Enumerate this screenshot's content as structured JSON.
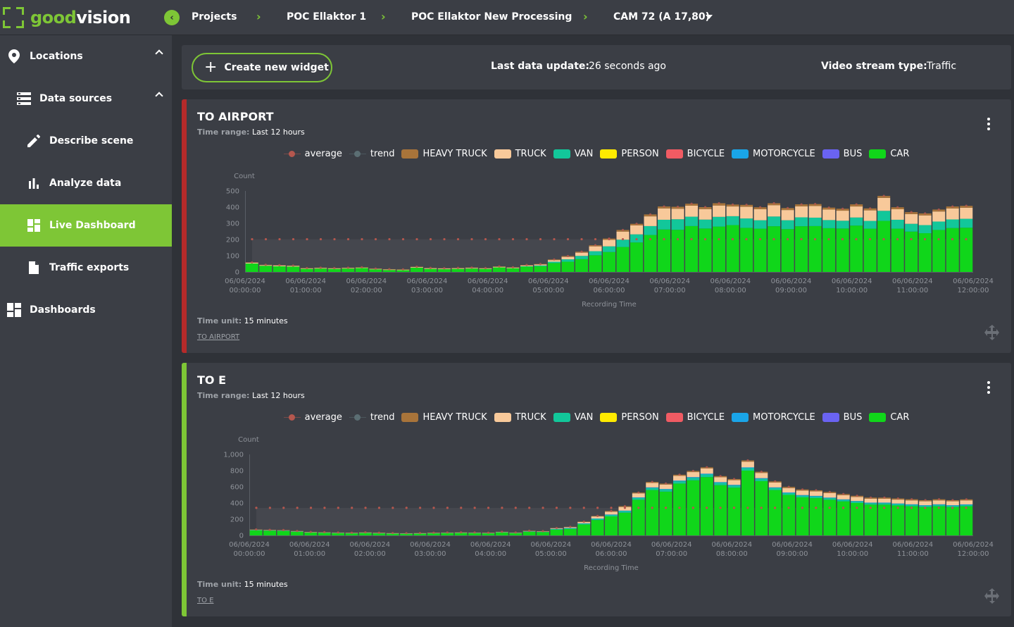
{
  "app": {
    "logo_good": "good",
    "logo_vision": "vision"
  },
  "breadcrumb": {
    "items": [
      "Projects",
      "POC Ellaktor 1",
      "POC Ellaktor New Processing",
      "CAM 72 (A 17,80)"
    ]
  },
  "sidebar": {
    "items": [
      {
        "label": "Locations",
        "icon": "location-pin-icon"
      },
      {
        "label": "Data sources",
        "icon": "data-sources-icon"
      },
      {
        "label": "Describe scene",
        "icon": "pencil-icon"
      },
      {
        "label": "Analyze data",
        "icon": "bar-chart-icon"
      },
      {
        "label": "Live Dashboard",
        "icon": "dashboard-icon",
        "active": true
      },
      {
        "label": "Traffic exports",
        "icon": "file-icon"
      },
      {
        "label": "Dashboards",
        "icon": "dashboards-icon"
      }
    ]
  },
  "header": {
    "create_label": "Create new widget",
    "last_update_label": "Last data update:",
    "last_update_value": "26 seconds ago",
    "stream_type_label": "Video stream type:",
    "stream_type_value": "Traffic"
  },
  "colors": {
    "accent": "#7ec636",
    "panel": "#3b3e45",
    "bg": "#2f3238"
  },
  "legend": [
    {
      "label": "average",
      "color": "#b5574e",
      "kind": "dot"
    },
    {
      "label": "trend",
      "color": "#5b6e73",
      "kind": "dot"
    },
    {
      "label": "HEAVY TRUCK",
      "color": "#a8743a",
      "kind": "box"
    },
    {
      "label": "TRUCK",
      "color": "#f8c99a",
      "kind": "box"
    },
    {
      "label": "VAN",
      "color": "#12c79a",
      "kind": "box"
    },
    {
      "label": "PERSON",
      "color": "#ffea00",
      "kind": "box"
    },
    {
      "label": "BICYCLE",
      "color": "#f05b63",
      "kind": "box"
    },
    {
      "label": "MOTORCYCLE",
      "color": "#1aa5e8",
      "kind": "box"
    },
    {
      "label": "BUS",
      "color": "#6a63f2",
      "kind": "box"
    },
    {
      "label": "CAR",
      "color": "#10d61a",
      "kind": "box"
    }
  ],
  "widgets": [
    {
      "title": "TO AIRPORT",
      "time_range_label": "Time range:",
      "time_range_value": "Last 12 hours",
      "time_unit_label": "Time unit:",
      "time_unit_value": "15 minutes",
      "link": "TO AIRPORT",
      "accent_color": "#b52a2a",
      "chart_data": {
        "type": "bar",
        "stacked": true,
        "ylabel": "Count",
        "xlabel": "Recording Time",
        "ylim": [
          0,
          500
        ],
        "yticks": [
          "0",
          "100",
          "200",
          "300",
          "400",
          "500"
        ],
        "xticks": [
          "06/06/2024 00:00:00",
          "06/06/2024 01:00:00",
          "06/06/2024 02:00:00",
          "06/06/2024 03:00:00",
          "06/06/2024 04:00:00",
          "06/06/2024 05:00:00",
          "06/06/2024 06:00:00",
          "06/06/2024 07:00:00",
          "06/06/2024 08:00:00",
          "06/06/2024 09:00:00",
          "06/06/2024 10:00:00",
          "06/06/2024 11:00:00",
          "06/06/2024 12:00:00"
        ],
        "average": 202,
        "series": [
          {
            "name": "CAR",
            "values": [
              52,
              38,
              35,
              33,
              19,
              21,
              19,
              21,
              24,
              16,
              12,
              11,
              26,
              19,
              17,
              19,
              21,
              19,
              28,
              23,
              33,
              35,
              55,
              63,
              79,
              103,
              123,
              154,
              182,
              228,
              262,
              260,
              283,
              268,
              280,
              289,
              272,
              267,
              282,
              264,
              282,
              283,
              270,
              268,
              286,
              267,
              315,
              267,
              249,
              239,
              259,
              271,
              273
            ]
          },
          {
            "name": "VAN",
            "values": [
              0,
              0,
              0,
              0,
              0,
              0,
              0,
              0,
              0,
              0,
              0,
              0,
              0,
              0,
              0,
              0,
              0,
              0,
              0,
              0,
              2,
              5,
              8,
              15,
              20,
              25,
              35,
              45,
              50,
              55,
              60,
              65,
              58,
              55,
              60,
              55,
              58,
              52,
              60,
              55,
              55,
              52,
              50,
              48,
              50,
              48,
              62,
              55,
              48,
              50,
              52,
              53,
              55
            ]
          },
          {
            "name": "TRUCK",
            "values": [
              5,
              4,
              5,
              4,
              3,
              3,
              3,
              3,
              3,
              3,
              3,
              3,
              4,
              4,
              4,
              4,
              4,
              3,
              4,
              4,
              5,
              6,
              10,
              15,
              20,
              30,
              40,
              50,
              55,
              60,
              70,
              65,
              68,
              65,
              70,
              60,
              72,
              68,
              70,
              63,
              68,
              72,
              65,
              62,
              68,
              65,
              80,
              65,
              60,
              60,
              62,
              68,
              68
            ]
          },
          {
            "name": "HEAVY TRUCK",
            "values": [
              2,
              2,
              2,
              2,
              2,
              2,
              2,
              2,
              2,
              2,
              2,
              2,
              2,
              2,
              2,
              2,
              2,
              2,
              2,
              2,
              3,
              3,
              4,
              5,
              6,
              7,
              8,
              10,
              10,
              12,
              12,
              12,
              12,
              12,
              14,
              12,
              12,
              12,
              12,
              12,
              12,
              12,
              12,
              12,
              13,
              12,
              12,
              12,
              12,
              12,
              12,
              12,
              12
            ]
          }
        ]
      }
    },
    {
      "title": "TO E",
      "time_range_label": "Time range:",
      "time_range_value": "Last 12 hours",
      "time_unit_label": "Time unit:",
      "time_unit_value": "15 minutes",
      "link": "TO E",
      "accent_color": "#7ec636",
      "chart_data": {
        "type": "bar",
        "stacked": true,
        "ylabel": "Count",
        "xlabel": "Recording Time",
        "ylim": [
          0,
          1000
        ],
        "yticks": [
          "0",
          "200",
          "400",
          "600",
          "800",
          "1,000"
        ],
        "xticks": [
          "06/06/2024 00:00:00",
          "06/06/2024 01:00:00",
          "06/06/2024 02:00:00",
          "06/06/2024 03:00:00",
          "06/06/2024 04:00:00",
          "06/06/2024 05:00:00",
          "06/06/2024 06:00:00",
          "06/06/2024 07:00:00",
          "06/06/2024 08:00:00",
          "06/06/2024 09:00:00",
          "06/06/2024 10:00:00",
          "06/06/2024 11:00:00",
          "06/06/2024 12:00:00"
        ],
        "average": 340,
        "series": [
          {
            "name": "CAR",
            "values": [
              62,
              58,
              55,
              45,
              35,
              32,
              28,
              25,
              30,
              25,
              22,
              20,
              22,
              25,
              28,
              30,
              28,
              25,
              35,
              28,
              45,
              40,
              72,
              80,
              135,
              190,
              235,
              280,
              440,
              560,
              540,
              640,
              680,
              720,
              620,
              590,
              800,
              670,
              560,
              500,
              470,
              460,
              440,
              420,
              400,
              380,
              380,
              370,
              360,
              350,
              360,
              350,
              360
            ]
          },
          {
            "name": "VAN",
            "values": [
              5,
              5,
              5,
              4,
              3,
              3,
              3,
              3,
              3,
              3,
              2,
              2,
              2,
              3,
              3,
              3,
              3,
              3,
              4,
              3,
              5,
              5,
              8,
              10,
              12,
              15,
              18,
              20,
              22,
              25,
              25,
              28,
              30,
              32,
              28,
              25,
              30,
              28,
              25,
              22,
              20,
              20,
              20,
              18,
              18,
              18,
              18,
              17,
              17,
              16,
              17,
              16,
              16
            ]
          },
          {
            "name": "MOTORCYCLE",
            "values": [
              0,
              0,
              0,
              0,
              0,
              0,
              0,
              0,
              0,
              0,
              0,
              0,
              0,
              0,
              0,
              0,
              0,
              0,
              0,
              0,
              0,
              0,
              1,
              2,
              3,
              4,
              5,
              6,
              7,
              8,
              8,
              9,
              10,
              10,
              10,
              9,
              10,
              9,
              8,
              8,
              8,
              8,
              7,
              7,
              7,
              7,
              7,
              7,
              7,
              7,
              7,
              7,
              7
            ]
          },
          {
            "name": "TRUCK",
            "values": [
              5,
              4,
              4,
              4,
              3,
              3,
              3,
              3,
              3,
              3,
              3,
              3,
              3,
              3,
              3,
              3,
              3,
              3,
              4,
              3,
              5,
              5,
              8,
              10,
              15,
              25,
              35,
              45,
              50,
              55,
              55,
              58,
              62,
              65,
              60,
              58,
              70,
              65,
              60,
              55,
              55,
              55,
              55,
              52,
              50,
              48,
              48,
              48,
              48,
              48,
              48,
              48,
              48
            ]
          },
          {
            "name": "HEAVY TRUCK",
            "values": [
              2,
              2,
              2,
              2,
              2,
              2,
              2,
              2,
              2,
              2,
              2,
              2,
              2,
              2,
              2,
              2,
              2,
              2,
              2,
              2,
              3,
              3,
              3,
              4,
              5,
              6,
              8,
              10,
              10,
              12,
              12,
              14,
              14,
              14,
              14,
              14,
              16,
              14,
              14,
              14,
              14,
              14,
              14,
              14,
              14,
              14,
              14,
              14,
              14,
              14,
              14,
              14,
              14
            ]
          }
        ]
      }
    }
  ]
}
